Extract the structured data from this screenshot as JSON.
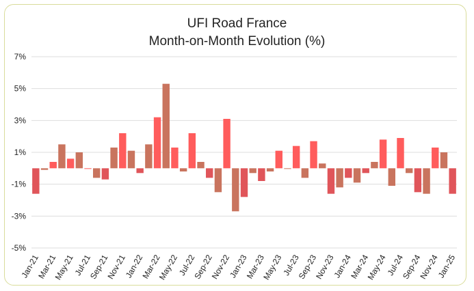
{
  "chart_data": {
    "type": "bar",
    "title": "UFI Road France",
    "subtitle": "Month-on-Month Evolution (%)",
    "xlabel": "",
    "ylabel": "",
    "ylim": [
      -5,
      7
    ],
    "yticks": [
      7,
      5,
      3,
      1,
      -1,
      -3,
      -5
    ],
    "ytick_labels": [
      "7%",
      "5%",
      "3%",
      "1%",
      "-1%",
      "-3%",
      "-5%"
    ],
    "grid": true,
    "legend": "none",
    "colors": {
      "positive_bar": "#ff5c5c",
      "negative_bar": "#e0555a",
      "bar_alt": "#c9745e",
      "grid": "#dddddd"
    },
    "categories": [
      "Jan-21",
      "Feb-21",
      "Mar-21",
      "Apr-21",
      "May-21",
      "Jun-21",
      "Jul-21",
      "Aug-21",
      "Sep-21",
      "Oct-21",
      "Nov-21",
      "Dec-21",
      "Jan-22",
      "Feb-22",
      "Mar-22",
      "Apr-22",
      "May-22",
      "Jun-22",
      "Jul-22",
      "Aug-22",
      "Sep-22",
      "Oct-22",
      "Nov-22",
      "Dec-22",
      "Jan-23",
      "Feb-23",
      "Mar-23",
      "Apr-23",
      "May-23",
      "Jun-23",
      "Jul-23",
      "Aug-23",
      "Sep-23",
      "Oct-23",
      "Nov-23",
      "Dec-23",
      "Jan-24",
      "Feb-24",
      "Mar-24",
      "Apr-24",
      "May-24",
      "Jun-24",
      "Jul-24",
      "Aug-24",
      "Sep-24",
      "Oct-24",
      "Nov-24",
      "Dec-24",
      "Jan-25"
    ],
    "tick_labels_shown": [
      "Jan-21",
      "Mar-21",
      "May-21",
      "Jul-21",
      "Sep-21",
      "Nov-21",
      "Jan-22",
      "Mar-22",
      "May-22",
      "Jul-22",
      "Sep-22",
      "Nov-22",
      "Jan-23",
      "Mar-23",
      "May-23",
      "Jul-23",
      "Sep-23",
      "Nov-23",
      "Jan-24",
      "Mar-24",
      "May-24",
      "Jul-24",
      "Sep-24",
      "Nov-24",
      "Jan-25"
    ],
    "values": [
      -1.6,
      -0.1,
      0.4,
      1.5,
      0.6,
      1.0,
      0.0,
      -0.6,
      -0.7,
      1.3,
      2.2,
      1.1,
      -0.3,
      1.5,
      3.2,
      5.3,
      1.3,
      -0.2,
      2.2,
      0.4,
      -0.6,
      -1.5,
      3.1,
      -2.7,
      -1.8,
      -0.3,
      -0.8,
      -0.2,
      1.1,
      0.0,
      1.4,
      -0.6,
      1.7,
      0.3,
      -1.6,
      -1.2,
      -0.6,
      -0.9,
      -0.3,
      0.4,
      1.8,
      -1.1,
      1.9,
      -0.3,
      -1.5,
      -1.6,
      1.3,
      1.0,
      -1.6
    ]
  }
}
